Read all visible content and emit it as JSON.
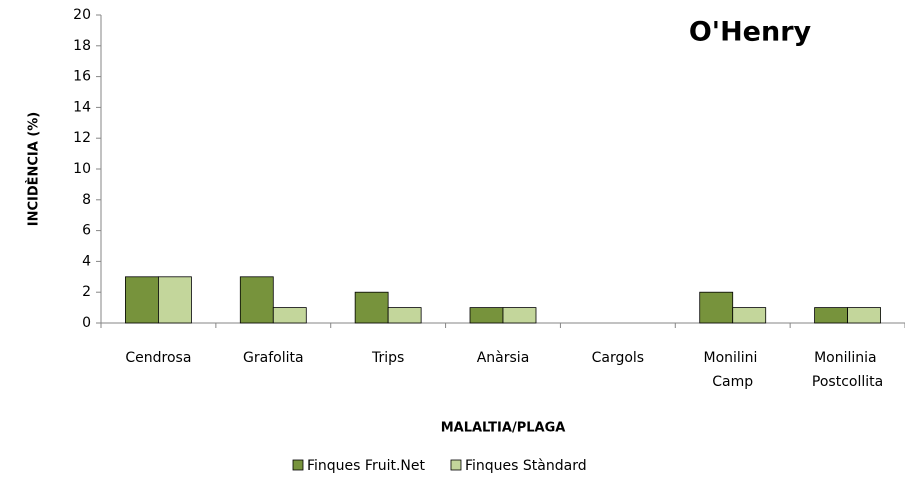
{
  "chart_data": {
    "type": "bar",
    "title": "O'Henry",
    "xlabel": "MALALTIA/PLAGA",
    "ylabel": "INCIDÈNCIA (%)",
    "categories": [
      "Cendrosa",
      "Grafolita",
      "Trips",
      "Anàrsia",
      "Cargols",
      "Monilini Camp",
      "Monilinia Postcollita"
    ],
    "series": [
      {
        "name": "Finques Fruit.Net",
        "color": "#77933c",
        "values": [
          3,
          3,
          2,
          1,
          0,
          2,
          1
        ]
      },
      {
        "name": "Finques Stàndard",
        "color": "#c3d69b",
        "values": [
          3,
          1,
          1,
          1,
          0,
          1,
          1
        ]
      }
    ],
    "ylim": [
      0,
      20
    ],
    "yticks": [
      0,
      2,
      4,
      6,
      8,
      10,
      12,
      14,
      16,
      18,
      20
    ],
    "grid": false,
    "legend": "bottom"
  }
}
